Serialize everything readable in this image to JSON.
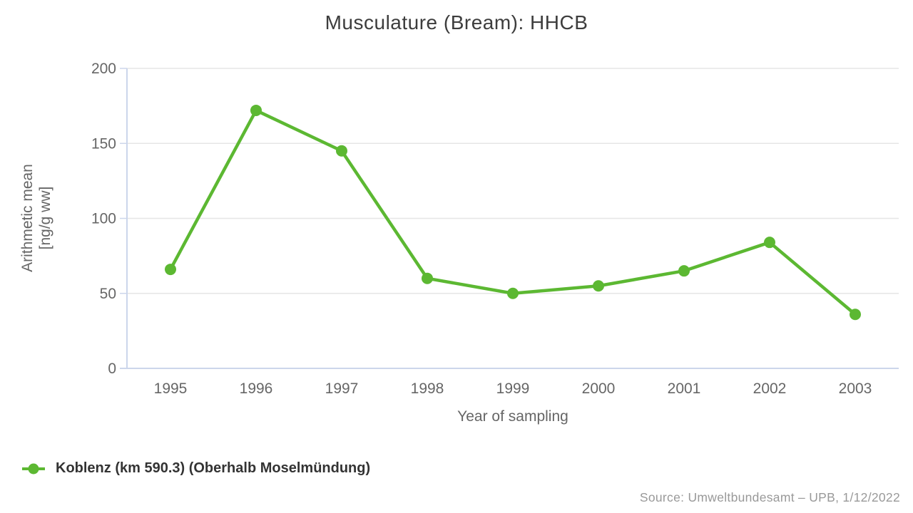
{
  "title": "Musculature (Bream): HHCB",
  "source": "Source: Umweltbundesamt – UPB, 1/12/2022",
  "colors": {
    "series_green": "#5cb832",
    "axis_line": "#ccd6eb",
    "grid": "#e6e6e6",
    "title_text": "#3d3d3d",
    "tick_text": "#666666",
    "legend_text": "#333333",
    "source_text": "#999999"
  },
  "legend": {
    "marker_icon": "line-with-dot-icon",
    "label": "Koblenz (km 590.3) (Oberhalb Moselmündung)"
  },
  "chart_data": {
    "type": "line",
    "title": "Musculature (Bream): HHCB",
    "xlabel": "Year of sampling",
    "ylabel": "Arithmetic mean [ng/g ww]",
    "ylabel_lines": [
      "Arithmetic mean",
      "[ng/g ww]"
    ],
    "categories": [
      "1995",
      "1996",
      "1997",
      "1998",
      "1999",
      "2000",
      "2001",
      "2002",
      "2003"
    ],
    "yticks": [
      0,
      50,
      100,
      150,
      200
    ],
    "ylim": [
      0,
      200
    ],
    "grid": true,
    "legend_position": "bottom-left",
    "series": [
      {
        "name": "Koblenz (km 590.3) (Oberhalb Moselmündung)",
        "color": "#5cb832",
        "values": [
          66,
          172,
          145,
          60,
          50,
          55,
          65,
          84,
          36
        ]
      }
    ]
  }
}
